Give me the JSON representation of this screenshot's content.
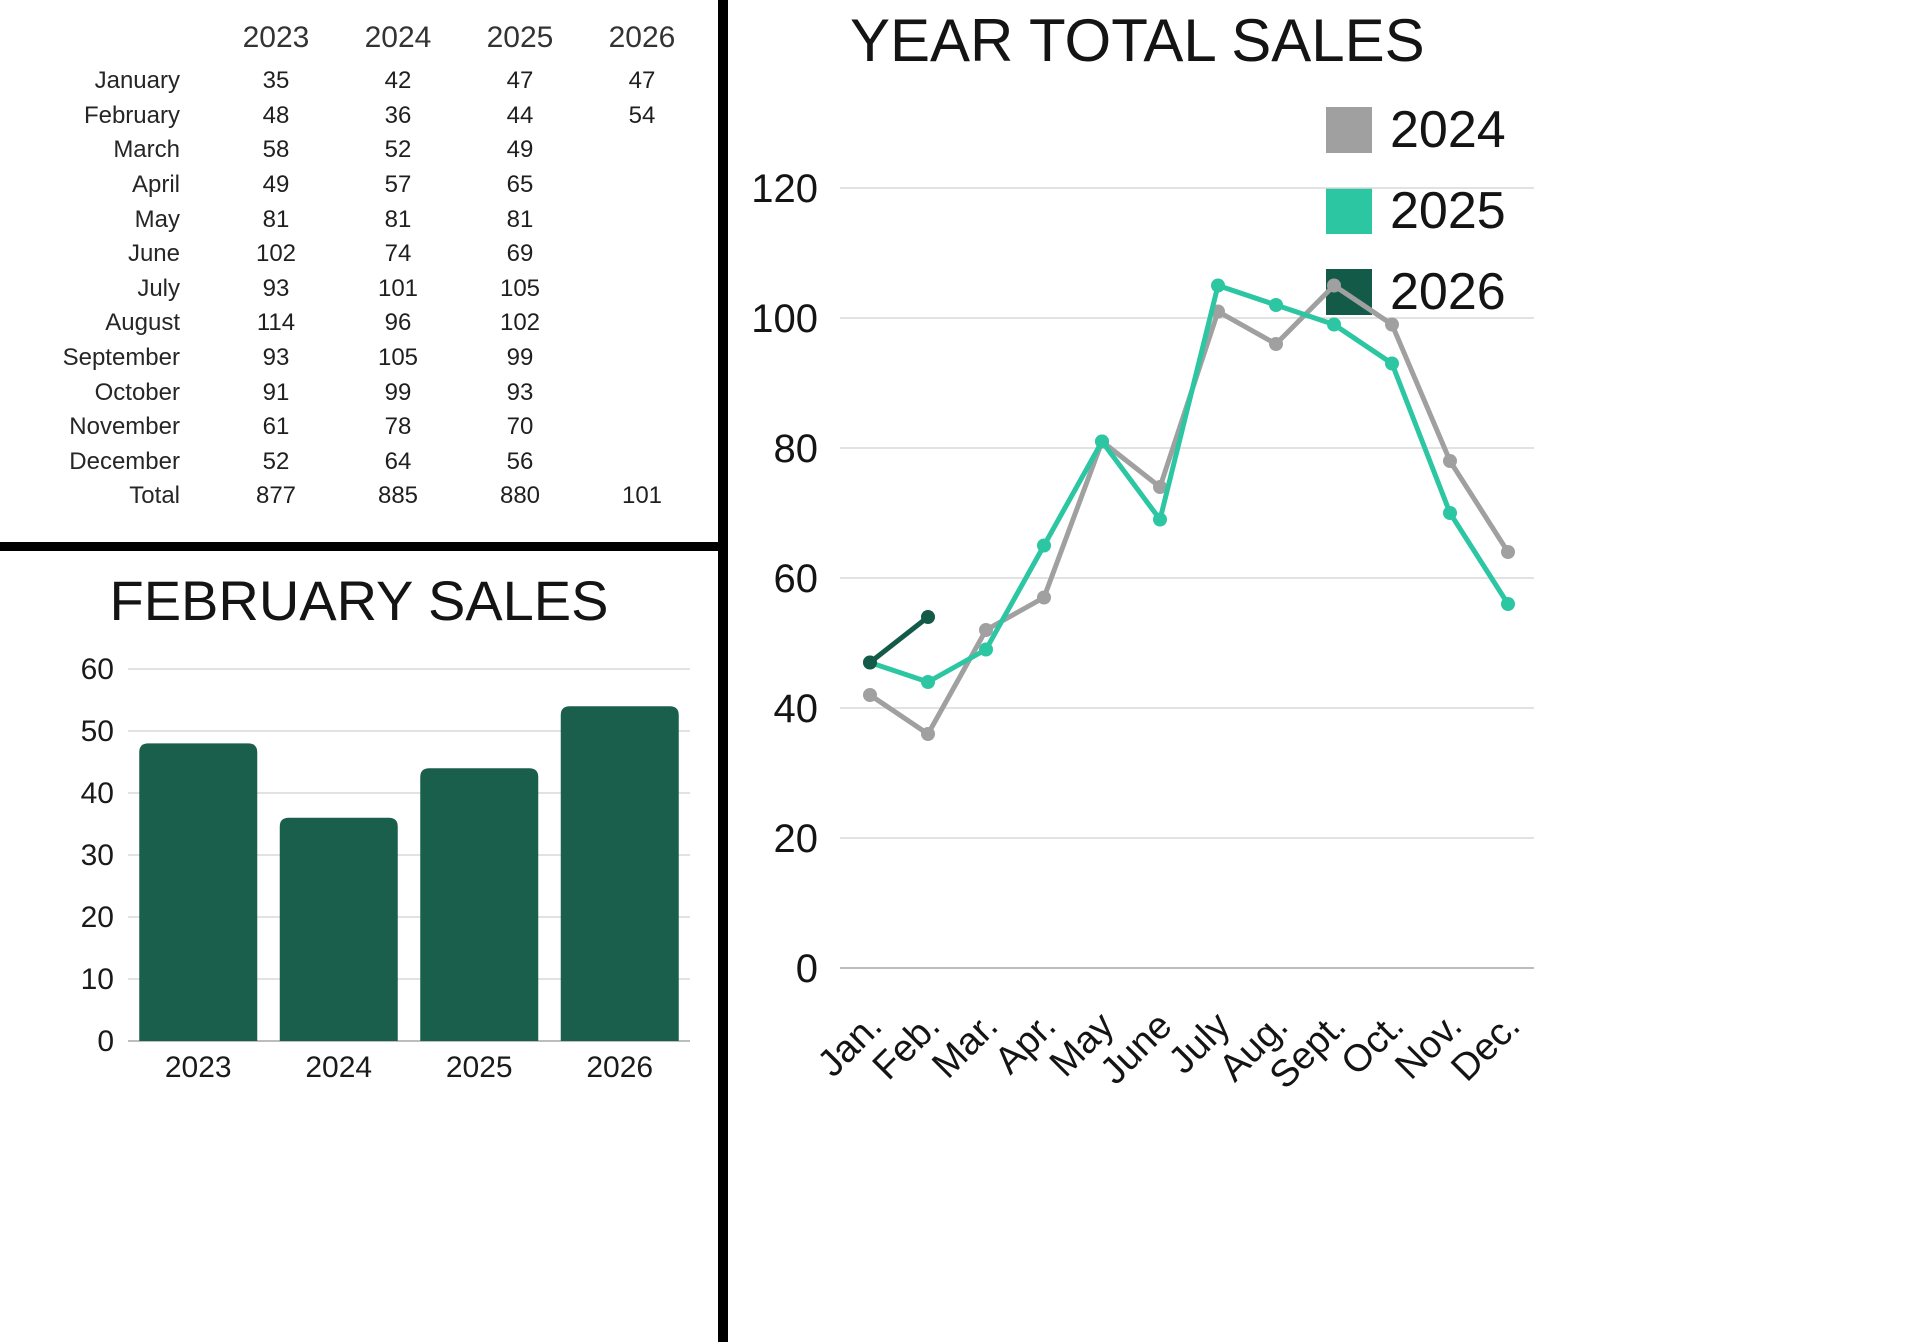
{
  "colors": {
    "bar_dark_green": "#1a5e4c",
    "series_2024_gray": "#a0a0a0",
    "series_2025_teal": "#2cc6a2",
    "series_2026_green": "#145a48",
    "gridline": "#d9d9d9",
    "divider": "#000000"
  },
  "table": {
    "year_headers": [
      "2023",
      "2024",
      "2025",
      "2026"
    ],
    "rows": [
      {
        "month": "January",
        "values": [
          "35",
          "42",
          "47",
          "47"
        ]
      },
      {
        "month": "February",
        "values": [
          "48",
          "36",
          "44",
          "54"
        ]
      },
      {
        "month": "March",
        "values": [
          "58",
          "52",
          "49",
          ""
        ]
      },
      {
        "month": "April",
        "values": [
          "49",
          "57",
          "65",
          ""
        ]
      },
      {
        "month": "May",
        "values": [
          "81",
          "81",
          "81",
          ""
        ]
      },
      {
        "month": "June",
        "values": [
          "102",
          "74",
          "69",
          ""
        ]
      },
      {
        "month": "July",
        "values": [
          "93",
          "101",
          "105",
          ""
        ]
      },
      {
        "month": "August",
        "values": [
          "114",
          "96",
          "102",
          ""
        ]
      },
      {
        "month": "September",
        "values": [
          "93",
          "105",
          "99",
          ""
        ]
      },
      {
        "month": "October",
        "values": [
          "91",
          "99",
          "93",
          ""
        ]
      },
      {
        "month": "November",
        "values": [
          "61",
          "78",
          "70",
          ""
        ]
      },
      {
        "month": "December",
        "values": [
          "52",
          "64",
          "56",
          ""
        ]
      },
      {
        "month": "Total",
        "values": [
          "877",
          "885",
          "880",
          "101"
        ]
      }
    ]
  },
  "chart_data": [
    {
      "id": "february-sales",
      "type": "bar",
      "title": "FEBRUARY SALES",
      "categories": [
        "2023",
        "2024",
        "2025",
        "2026"
      ],
      "values": [
        48,
        36,
        44,
        54
      ],
      "bar_color": "#1a5e4c",
      "xlabel": "",
      "ylabel": "",
      "ylim": [
        0,
        60
      ],
      "yticks": [
        0,
        10,
        20,
        30,
        40,
        50,
        60
      ],
      "grid": true,
      "legend": "none"
    },
    {
      "id": "year-total-sales",
      "type": "line",
      "title": "YEAR TOTAL SALES",
      "categories": [
        "Jan.",
        "Feb.",
        "Mar.",
        "Apr.",
        "May",
        "June",
        "July",
        "Aug.",
        "Sept.",
        "Oct.",
        "Nov.",
        "Dec."
      ],
      "series": [
        {
          "name": "2024",
          "color": "#a0a0a0",
          "values": [
            42,
            36,
            52,
            57,
            81,
            74,
            101,
            96,
            105,
            99,
            78,
            64
          ]
        },
        {
          "name": "2025",
          "color": "#2cc6a2",
          "values": [
            47,
            44,
            49,
            65,
            81,
            69,
            105,
            102,
            99,
            93,
            70,
            56
          ]
        },
        {
          "name": "2026",
          "color": "#145a48",
          "values": [
            47,
            54
          ]
        }
      ],
      "xlabel": "",
      "ylabel": "",
      "ylim": [
        0,
        120
      ],
      "yticks": [
        0,
        20,
        40,
        60,
        80,
        100,
        120
      ],
      "grid": true,
      "legend_position": "top-right"
    }
  ]
}
